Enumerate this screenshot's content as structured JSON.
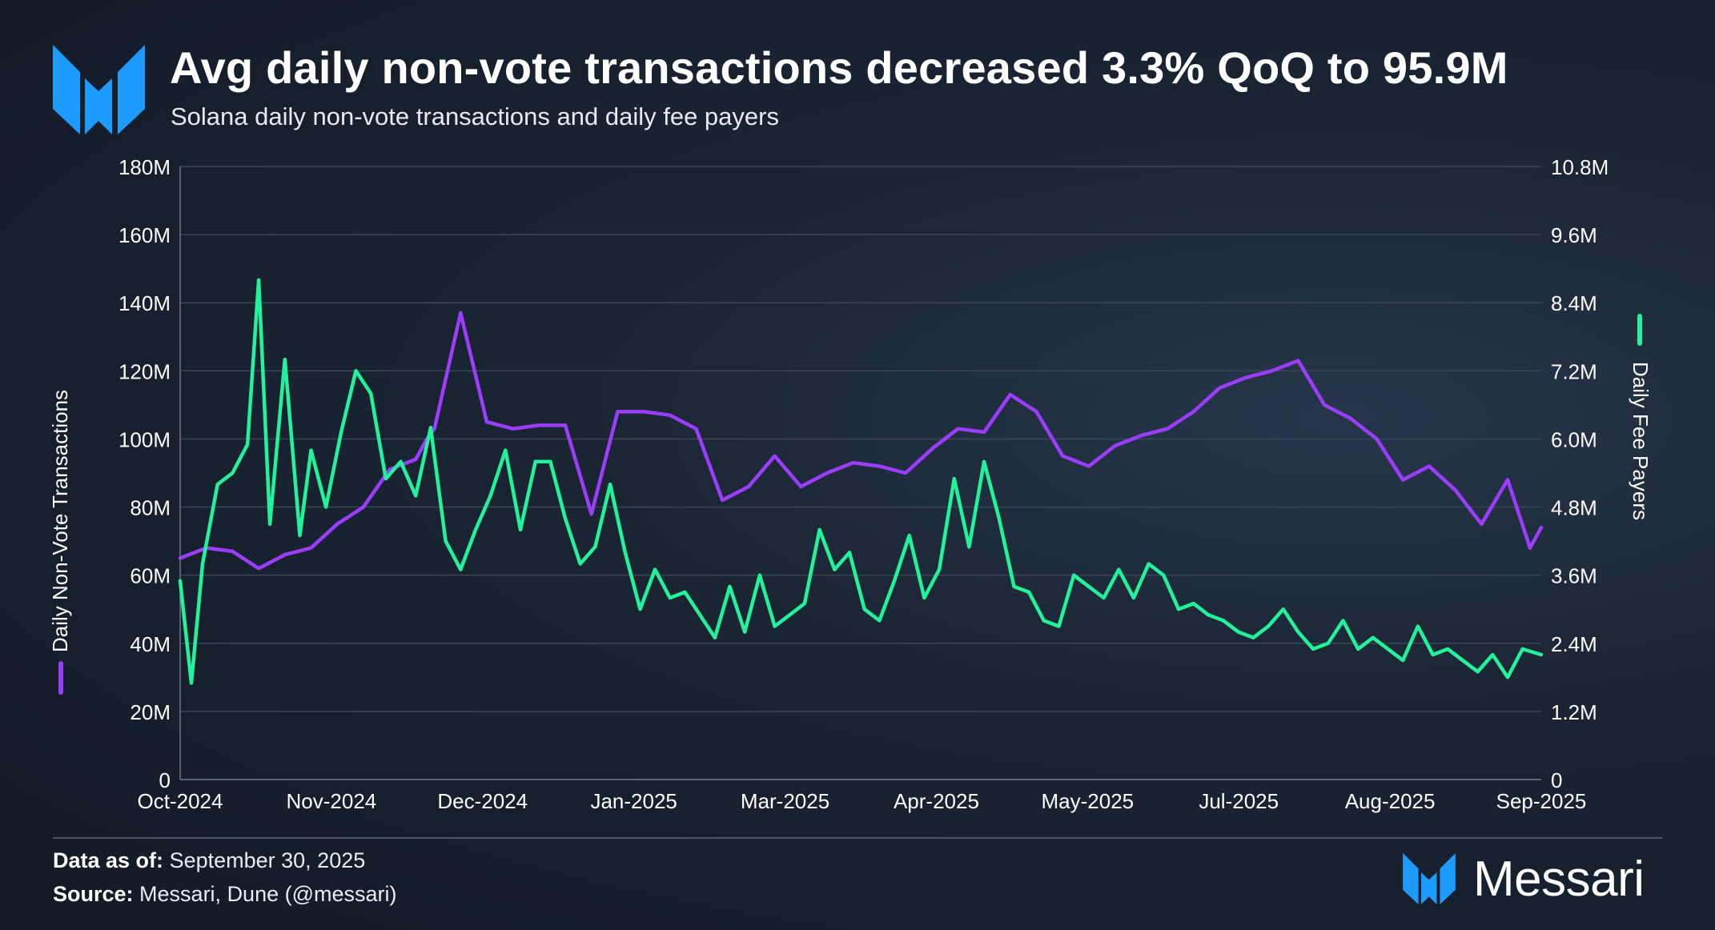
{
  "header": {
    "title": "Avg daily non-vote transactions decreased 3.3% QoQ to 95.9M",
    "subtitle": "Solana daily non-vote transactions and daily fee payers"
  },
  "footer": {
    "data_as_of_label": "Data as of:",
    "data_as_of_value": "September 30, 2025",
    "source_label": "Source:",
    "source_value": "Messari, Dune (@messari)",
    "brand": "Messari"
  },
  "colors": {
    "transactions": "#9b3dfc",
    "fee_payers": "#22f39a",
    "brand_blue": "#1e9bff"
  },
  "chart_data": {
    "type": "line",
    "title": "Avg daily non-vote transactions decreased 3.3% QoQ to 95.9M",
    "subtitle": "Solana daily non-vote transactions and daily fee payers",
    "x_axis": {
      "tick_labels": [
        "Oct-2024",
        "Nov-2024",
        "Dec-2024",
        "Jan-2025",
        "Mar-2025",
        "Apr-2025",
        "May-2025",
        "Jul-2025",
        "Aug-2025",
        "Sep-2025"
      ],
      "start": "2024-10-01",
      "end": "2025-09-30"
    },
    "y_left": {
      "label": "Daily Non-Vote Transactions",
      "range": [
        0,
        180000000
      ],
      "tick_labels": [
        "0",
        "20M",
        "40M",
        "60M",
        "80M",
        "100M",
        "120M",
        "140M",
        "160M",
        "180M"
      ]
    },
    "y_right": {
      "label": "Daily Fee Payers",
      "range": [
        0,
        10800000
      ],
      "tick_labels": [
        "0",
        "1.2M",
        "2.4M",
        "3.6M",
        "4.8M",
        "6.0M",
        "7.2M",
        "8.4M",
        "9.6M",
        "10.8M"
      ]
    },
    "grid": true,
    "series": [
      {
        "name": "Daily Non-Vote Transactions",
        "axis": "left",
        "color": "#9b3dfc",
        "x": [
          "2024-10-01",
          "2024-10-08",
          "2024-10-15",
          "2024-10-22",
          "2024-10-29",
          "2024-11-05",
          "2024-11-12",
          "2024-11-19",
          "2024-11-26",
          "2024-12-03",
          "2024-12-06",
          "2024-12-08",
          "2024-12-15",
          "2024-12-22",
          "2024-12-29",
          "2025-01-05",
          "2025-01-12",
          "2025-01-19",
          "2025-01-26",
          "2025-02-02",
          "2025-02-09",
          "2025-02-16",
          "2025-02-23",
          "2025-03-02",
          "2025-03-09",
          "2025-03-16",
          "2025-03-23",
          "2025-03-30",
          "2025-04-06",
          "2025-04-13",
          "2025-04-20",
          "2025-04-27",
          "2025-05-04",
          "2025-05-11",
          "2025-05-18",
          "2025-05-25",
          "2025-06-01",
          "2025-06-08",
          "2025-06-15",
          "2025-06-22",
          "2025-06-29",
          "2025-07-06",
          "2025-07-13",
          "2025-07-20",
          "2025-07-27",
          "2025-08-03",
          "2025-08-10",
          "2025-08-17",
          "2025-08-24",
          "2025-08-31",
          "2025-09-07",
          "2025-09-14",
          "2025-09-21",
          "2025-09-27",
          "2025-09-30"
        ],
        "values": [
          65000000,
          68000000,
          67000000,
          62000000,
          66000000,
          68000000,
          75000000,
          80000000,
          91000000,
          94000000,
          100000000,
          103000000,
          137000000,
          105000000,
          103000000,
          104000000,
          104000000,
          78000000,
          108000000,
          108000000,
          107000000,
          103000000,
          82000000,
          86000000,
          95000000,
          86000000,
          90000000,
          93000000,
          92000000,
          90000000,
          97000000,
          103000000,
          102000000,
          113000000,
          108000000,
          95000000,
          92000000,
          98000000,
          101000000,
          103000000,
          108000000,
          115000000,
          118000000,
          120000000,
          123000000,
          110000000,
          106000000,
          100000000,
          88000000,
          92000000,
          85000000,
          75000000,
          88000000,
          68000000,
          74000000
        ]
      },
      {
        "name": "Daily Fee Payers",
        "axis": "right",
        "color": "#22f39a",
        "x": [
          "2024-10-01",
          "2024-10-04",
          "2024-10-07",
          "2024-10-11",
          "2024-10-15",
          "2024-10-19",
          "2024-10-22",
          "2024-10-25",
          "2024-10-29",
          "2024-11-02",
          "2024-11-05",
          "2024-11-09",
          "2024-11-13",
          "2024-11-17",
          "2024-11-21",
          "2024-11-25",
          "2024-11-29",
          "2024-12-03",
          "2024-12-07",
          "2024-12-11",
          "2024-12-15",
          "2024-12-19",
          "2024-12-23",
          "2024-12-27",
          "2024-12-31",
          "2025-01-04",
          "2025-01-08",
          "2025-01-12",
          "2025-01-16",
          "2025-01-20",
          "2025-01-24",
          "2025-01-28",
          "2025-02-01",
          "2025-02-05",
          "2025-02-09",
          "2025-02-13",
          "2025-02-17",
          "2025-02-21",
          "2025-02-25",
          "2025-03-01",
          "2025-03-05",
          "2025-03-09",
          "2025-03-13",
          "2025-03-17",
          "2025-03-21",
          "2025-03-25",
          "2025-03-29",
          "2025-04-02",
          "2025-04-06",
          "2025-04-10",
          "2025-04-14",
          "2025-04-18",
          "2025-04-22",
          "2025-04-26",
          "2025-04-30",
          "2025-05-04",
          "2025-05-08",
          "2025-05-12",
          "2025-05-16",
          "2025-05-20",
          "2025-05-24",
          "2025-05-28",
          "2025-06-01",
          "2025-06-05",
          "2025-06-09",
          "2025-06-13",
          "2025-06-17",
          "2025-06-21",
          "2025-06-25",
          "2025-06-29",
          "2025-07-03",
          "2025-07-07",
          "2025-07-11",
          "2025-07-15",
          "2025-07-19",
          "2025-07-23",
          "2025-07-27",
          "2025-07-31",
          "2025-08-04",
          "2025-08-08",
          "2025-08-12",
          "2025-08-16",
          "2025-08-20",
          "2025-08-24",
          "2025-08-28",
          "2025-09-01",
          "2025-09-05",
          "2025-09-09",
          "2025-09-13",
          "2025-09-17",
          "2025-09-21",
          "2025-09-25",
          "2025-09-30"
        ],
        "values": [
          3500000,
          1700000,
          3800000,
          5200000,
          5400000,
          5900000,
          8800000,
          4500000,
          7400000,
          4300000,
          5800000,
          4800000,
          6100000,
          7200000,
          6800000,
          5300000,
          5600000,
          5000000,
          6200000,
          4200000,
          3700000,
          4400000,
          5000000,
          5800000,
          4400000,
          5600000,
          5600000,
          4600000,
          3800000,
          4100000,
          5200000,
          4000000,
          3000000,
          3700000,
          3200000,
          3300000,
          2900000,
          2500000,
          3400000,
          2600000,
          3600000,
          2700000,
          2900000,
          3100000,
          4400000,
          3700000,
          4000000,
          3000000,
          2800000,
          3500000,
          4300000,
          3200000,
          3700000,
          5300000,
          4100000,
          5600000,
          4600000,
          3400000,
          3300000,
          2800000,
          2700000,
          3600000,
          3400000,
          3200000,
          3700000,
          3200000,
          3800000,
          3600000,
          3000000,
          3100000,
          2900000,
          2800000,
          2600000,
          2500000,
          2700000,
          3000000,
          2600000,
          2300000,
          2400000,
          2800000,
          2300000,
          2500000,
          2300000,
          2100000,
          2700000,
          2200000,
          2300000,
          2100000,
          1900000,
          2200000,
          1800000,
          2300000,
          2200000
        ]
      }
    ]
  }
}
